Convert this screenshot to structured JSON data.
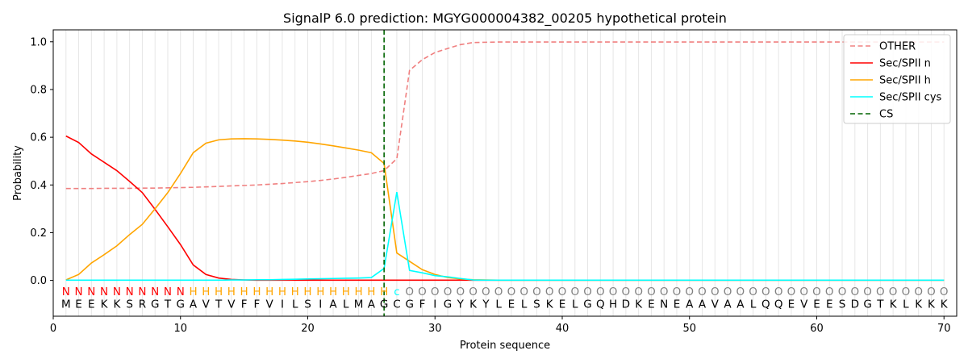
{
  "chart_data": {
    "type": "line",
    "title": "SignalP 6.0 prediction: MGYG000004382_00205 hypothetical protein",
    "xlabel": "Protein sequence",
    "ylabel": "Probability",
    "xlim": [
      0,
      71
    ],
    "ylim": [
      -0.15,
      1.05
    ],
    "x_ticks": [
      0,
      10,
      20,
      30,
      40,
      50,
      60,
      70
    ],
    "y_ticks": [
      "0.0",
      "0.2",
      "0.4",
      "0.6",
      "0.8",
      "1.0"
    ],
    "legend_position": "top-right",
    "sequence": [
      "M",
      "E",
      "E",
      "K",
      "K",
      "S",
      "R",
      "G",
      "T",
      "G",
      "A",
      "V",
      "T",
      "V",
      "F",
      "F",
      "V",
      "I",
      "L",
      "S",
      "I",
      "A",
      "L",
      "M",
      "A",
      "G",
      "C",
      "G",
      "F",
      "I",
      "G",
      "Y",
      "K",
      "Y",
      "L",
      "E",
      "L",
      "S",
      "K",
      "E",
      "L",
      "G",
      "Q",
      "H",
      "D",
      "K",
      "E",
      "N",
      "E",
      "A",
      "A",
      "V",
      "A",
      "A",
      "L",
      "Q",
      "Q",
      "E",
      "V",
      "E",
      "E",
      "S",
      "D",
      "G",
      "T",
      "K",
      "L",
      "K",
      "K",
      "K"
    ],
    "labels": [
      "N",
      "N",
      "N",
      "N",
      "N",
      "N",
      "N",
      "N",
      "N",
      "N",
      "H",
      "H",
      "H",
      "H",
      "H",
      "H",
      "H",
      "H",
      "H",
      "H",
      "H",
      "H",
      "H",
      "H",
      "H",
      "H",
      "c",
      "O",
      "O",
      "O",
      "O",
      "O",
      "O",
      "O",
      "O",
      "O",
      "O",
      "O",
      "O",
      "O",
      "O",
      "O",
      "O",
      "O",
      "O",
      "O",
      "O",
      "O",
      "O",
      "O",
      "O",
      "O",
      "O",
      "O",
      "O",
      "O",
      "O",
      "O",
      "O",
      "O",
      "O",
      "O",
      "O",
      "O",
      "O",
      "O",
      "O",
      "O",
      "O",
      "O"
    ],
    "label_colors": {
      "N": "#ff0000",
      "H": "#ffa500",
      "c": "#00ffff",
      "O": "#808080"
    },
    "cleavage_site": 26,
    "series": [
      {
        "name": "OTHER",
        "color": "#f08080",
        "dash": true,
        "values": [
          0.385,
          0.385,
          0.385,
          0.386,
          0.386,
          0.386,
          0.387,
          0.387,
          0.388,
          0.389,
          0.39,
          0.392,
          0.394,
          0.396,
          0.398,
          0.4,
          0.403,
          0.406,
          0.41,
          0.414,
          0.419,
          0.425,
          0.432,
          0.44,
          0.448,
          0.46,
          0.51,
          0.88,
          0.925,
          0.955,
          0.972,
          0.988,
          0.997,
          0.998,
          0.999,
          0.999,
          0.999,
          0.999,
          0.999,
          0.999,
          0.999,
          0.999,
          0.999,
          0.999,
          0.999,
          0.999,
          0.999,
          0.999,
          0.999,
          0.999,
          0.999,
          0.999,
          0.999,
          0.999,
          0.999,
          0.999,
          0.999,
          0.999,
          0.999,
          0.999,
          0.999,
          0.999,
          0.999,
          0.999,
          0.999,
          0.999,
          0.999,
          0.999,
          0.999,
          0.999
        ]
      },
      {
        "name": "Sec/SPII n",
        "color": "#ff0000",
        "dash": false,
        "values": [
          0.605,
          0.578,
          0.53,
          0.495,
          0.46,
          0.415,
          0.368,
          0.298,
          0.225,
          0.15,
          0.065,
          0.025,
          0.01,
          0.004,
          0.002,
          0.001,
          0.001,
          0.001,
          0.001,
          0.001,
          0.001,
          0.001,
          0.001,
          0.001,
          0.001,
          0.001,
          0.001,
          0.001,
          0.001,
          0.001,
          0.001,
          0.001,
          0.001,
          0.001,
          0.001,
          0.001,
          0.001,
          0.001,
          0.001,
          0.001,
          0.001,
          0.001,
          0.001,
          0.001,
          0.001,
          0.001,
          0.001,
          0.001,
          0.001,
          0.001,
          0.001,
          0.001,
          0.001,
          0.001,
          0.001,
          0.001,
          0.001,
          0.001,
          0.001,
          0.001,
          0.001,
          0.001,
          0.001,
          0.001,
          0.001,
          0.001,
          0.001,
          0.001,
          0.001,
          0.001
        ]
      },
      {
        "name": "Sec/SPII h",
        "color": "#ffa500",
        "dash": false,
        "values": [
          0.002,
          0.025,
          0.073,
          0.108,
          0.145,
          0.192,
          0.235,
          0.3,
          0.368,
          0.448,
          0.535,
          0.575,
          0.589,
          0.593,
          0.594,
          0.593,
          0.591,
          0.588,
          0.584,
          0.579,
          0.572,
          0.564,
          0.555,
          0.546,
          0.535,
          0.49,
          0.115,
          0.08,
          0.045,
          0.025,
          0.012,
          0.006,
          0.003,
          0.002,
          0.001,
          0.001,
          0.001,
          0.001,
          0.001,
          0.001,
          0.001,
          0.001,
          0.001,
          0.001,
          0.001,
          0.001,
          0.001,
          0.001,
          0.001,
          0.001,
          0.001,
          0.001,
          0.001,
          0.001,
          0.001,
          0.001,
          0.001,
          0.001,
          0.001,
          0.001,
          0.001,
          0.001,
          0.001,
          0.001,
          0.001,
          0.001,
          0.001,
          0.001,
          0.001,
          0.001
        ]
      },
      {
        "name": "Sec/SPII cys",
        "color": "#00ffff",
        "dash": false,
        "values": [
          0.001,
          0.001,
          0.001,
          0.001,
          0.001,
          0.001,
          0.001,
          0.001,
          0.001,
          0.001,
          0.001,
          0.001,
          0.001,
          0.002,
          0.002,
          0.003,
          0.003,
          0.004,
          0.005,
          0.006,
          0.007,
          0.008,
          0.009,
          0.01,
          0.012,
          0.05,
          0.37,
          0.042,
          0.032,
          0.02,
          0.015,
          0.008,
          0.002,
          0.001,
          0.001,
          0.001,
          0.001,
          0.001,
          0.001,
          0.001,
          0.001,
          0.001,
          0.001,
          0.001,
          0.001,
          0.001,
          0.001,
          0.001,
          0.001,
          0.001,
          0.001,
          0.001,
          0.001,
          0.001,
          0.001,
          0.001,
          0.001,
          0.001,
          0.001,
          0.001,
          0.001,
          0.001,
          0.001,
          0.001,
          0.001,
          0.001,
          0.001,
          0.001,
          0.001,
          0.001
        ]
      }
    ],
    "cs_legend": {
      "name": "CS",
      "color": "#006400"
    }
  }
}
